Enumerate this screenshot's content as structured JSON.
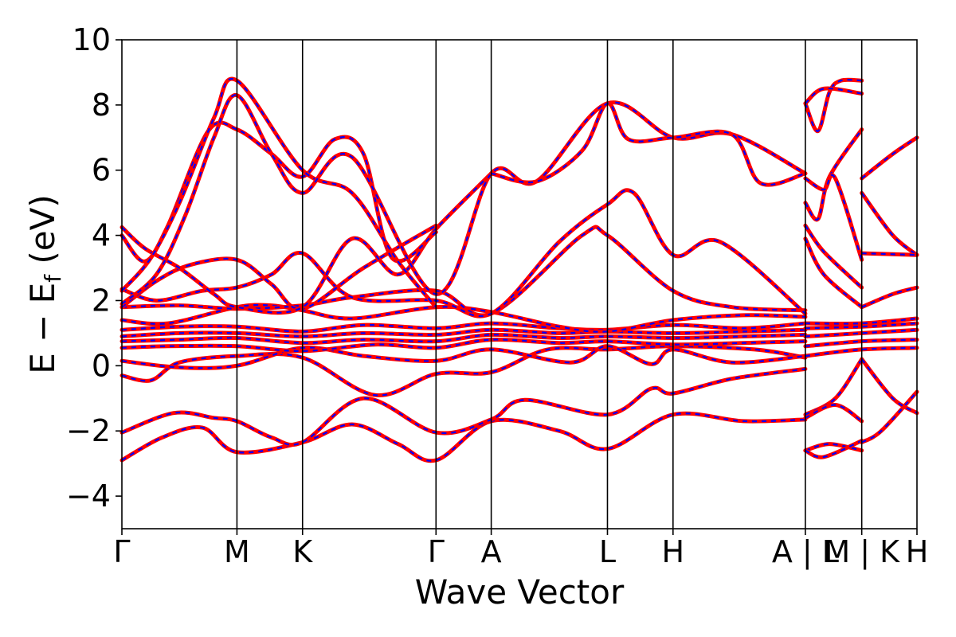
{
  "chart_data": {
    "type": "line",
    "xlabel": "Wave Vector",
    "ylabel": "E − E_f (eV)",
    "ylabel_parts": {
      "main": "E − E",
      "sub": "f",
      "unit": " (eV)"
    },
    "ylim": [
      -5,
      10
    ],
    "yticks": [
      -4,
      -2,
      0,
      2,
      4,
      6,
      8,
      10
    ],
    "ytick_labels": [
      "−4",
      "−2",
      "0",
      "2",
      "4",
      "6",
      "8",
      "10"
    ],
    "xlim": [
      0,
      6.91
    ],
    "kpoints": [
      {
        "label": "Γ",
        "x": 0.0
      },
      {
        "label": "M",
        "x": 1.0
      },
      {
        "label": "K",
        "x": 1.57
      },
      {
        "label": "Γ",
        "x": 2.73
      },
      {
        "label": "A",
        "x": 3.21
      },
      {
        "label": "L",
        "x": 4.22
      },
      {
        "label": "H",
        "x": 4.79
      },
      {
        "label": "A | L",
        "x": 5.94
      },
      {
        "label": "M | K",
        "x": 6.43
      },
      {
        "label": "H",
        "x": 6.91
      }
    ],
    "colors": {
      "primary": "#ff0000",
      "overlay": "#0000ff",
      "axis": "#000000"
    },
    "series": [
      {
        "x": [
          0,
          0.35,
          0.7,
          1.0,
          1.57,
          2.0,
          2.4,
          2.73,
          3.21,
          3.8,
          4.22,
          4.79,
          5.4,
          5.94
        ],
        "y": [
          -2.9,
          -2.2,
          -1.9,
          -2.65,
          -2.35,
          -1.8,
          -2.4,
          -2.9,
          -1.7,
          -2.0,
          -2.55,
          -1.5,
          -1.7,
          -1.65
        ]
      },
      {
        "x": [
          0,
          0.45,
          0.8,
          1.0,
          1.3,
          1.57,
          2.1,
          2.73,
          3.21,
          3.5,
          4.22,
          4.6,
          4.79,
          5.3,
          5.94
        ],
        "y": [
          -2.05,
          -1.45,
          -1.6,
          -1.7,
          -2.2,
          -2.35,
          -1.0,
          -2.05,
          -1.65,
          -1.05,
          -1.5,
          -0.7,
          -0.85,
          -0.4,
          -0.1
        ]
      },
      {
        "x": [
          0,
          0.25,
          0.5,
          1.0,
          1.57,
          2.2,
          2.73,
          3.21,
          3.7,
          4.22,
          4.79,
          5.5,
          5.94
        ],
        "y": [
          -0.3,
          -0.45,
          0.1,
          0.3,
          0.25,
          -0.9,
          -0.25,
          -0.2,
          0.5,
          0.5,
          0.6,
          0.5,
          0.25
        ]
      },
      {
        "x": [
          0,
          0.5,
          1.0,
          1.57,
          2.1,
          2.73,
          3.21,
          3.9,
          4.22,
          4.6,
          4.79,
          5.3,
          5.94
        ],
        "y": [
          0.15,
          -0.05,
          0.0,
          0.55,
          0.3,
          0.15,
          0.5,
          0.1,
          0.6,
          0.05,
          0.5,
          0.1,
          0.3
        ]
      },
      {
        "x": [
          0,
          0.4,
          1.0,
          1.57,
          2.2,
          2.73,
          3.21,
          3.8,
          4.22,
          4.79,
          5.4,
          5.94
        ],
        "y": [
          0.55,
          0.6,
          0.6,
          0.45,
          0.65,
          0.55,
          0.8,
          0.7,
          0.75,
          0.65,
          0.7,
          0.75
        ]
      },
      {
        "x": [
          0,
          0.5,
          1.0,
          1.57,
          2.1,
          2.73,
          3.21,
          3.8,
          4.22,
          4.79,
          5.4,
          5.94
        ],
        "y": [
          0.75,
          0.8,
          0.85,
          0.7,
          0.8,
          0.75,
          0.95,
          0.85,
          0.9,
          0.85,
          0.9,
          0.95
        ]
      },
      {
        "x": [
          0,
          0.5,
          1.0,
          1.57,
          2.1,
          2.73,
          3.21,
          3.8,
          4.22,
          4.79,
          5.4,
          5.94
        ],
        "y": [
          0.9,
          1.0,
          1.0,
          0.9,
          1.0,
          0.95,
          1.1,
          1.0,
          1.05,
          1.0,
          1.05,
          1.1
        ]
      },
      {
        "x": [
          0,
          0.5,
          1.0,
          1.57,
          2.1,
          2.73,
          3.21,
          3.8,
          4.22,
          4.79,
          5.4,
          5.94
        ],
        "y": [
          1.1,
          1.2,
          1.2,
          1.05,
          1.25,
          1.15,
          1.3,
          1.15,
          1.1,
          1.25,
          1.15,
          1.3
        ]
      },
      {
        "x": [
          0,
          0.4,
          1.0,
          1.3,
          1.57,
          2.0,
          2.73,
          3.21,
          3.8,
          4.22,
          4.79,
          5.4,
          5.94
        ],
        "y": [
          1.4,
          1.3,
          1.8,
          1.85,
          1.7,
          1.45,
          1.8,
          1.65,
          1.2,
          1.05,
          1.4,
          1.55,
          1.5
        ]
      },
      {
        "x": [
          0,
          0.5,
          1.0,
          1.57,
          2.0,
          2.73,
          3.21,
          4.0,
          4.22,
          4.79,
          5.3,
          5.94
        ],
        "y": [
          1.8,
          1.85,
          1.75,
          1.85,
          2.1,
          2.3,
          1.6,
          4.0,
          4.0,
          2.3,
          1.8,
          1.7
        ]
      },
      {
        "x": [
          0,
          0.3,
          0.7,
          1.0,
          1.3,
          1.57,
          2.0,
          2.73,
          3.21,
          3.8,
          4.22,
          4.45,
          4.79,
          5.2,
          5.94
        ],
        "y": [
          2.35,
          2.0,
          2.3,
          2.4,
          2.8,
          3.45,
          2.1,
          2.0,
          1.6,
          3.8,
          4.95,
          5.3,
          3.4,
          3.8,
          1.6
        ]
      },
      {
        "x": [
          0,
          0.3,
          0.6,
          1.0,
          1.3,
          1.57,
          2.1,
          2.73
        ],
        "y": [
          1.8,
          2.6,
          3.1,
          3.25,
          2.5,
          1.75,
          3.0,
          4.3
        ]
      },
      {
        "x": [
          0,
          0.2,
          0.5,
          0.8,
          1.0,
          1.57,
          2.0,
          2.4,
          2.73,
          3.21
        ],
        "y": [
          4.25,
          3.6,
          3.0,
          2.2,
          1.8,
          1.8,
          3.9,
          2.8,
          4.2,
          5.9
        ]
      },
      {
        "x": [
          0,
          0.2,
          0.4,
          0.75,
          1.0,
          1.3,
          1.57,
          1.85,
          2.1,
          2.35,
          2.73
        ],
        "y": [
          4.0,
          3.2,
          4.3,
          7.2,
          7.25,
          6.5,
          5.8,
          6.95,
          6.5,
          3.3,
          4.1
        ]
      },
      {
        "x": [
          0,
          0.25,
          0.5,
          0.8,
          1.0,
          1.57,
          2.0,
          2.4,
          2.73
        ],
        "y": [
          2.3,
          3.3,
          5.0,
          7.6,
          8.75,
          6.0,
          5.3,
          3.2,
          1.8
        ]
      },
      {
        "x": [
          0,
          0.3,
          0.55,
          0.8,
          1.0,
          1.3,
          1.57,
          2.0,
          2.73,
          3.21,
          3.6,
          4.22,
          4.79,
          5.3,
          5.94
        ],
        "y": [
          1.9,
          2.8,
          4.6,
          7.0,
          8.3,
          6.5,
          5.3,
          6.4,
          2.2,
          5.9,
          5.65,
          8.05,
          7.0,
          7.1,
          5.9
        ]
      },
      {
        "x": [
          3.21,
          3.6,
          4.0,
          4.22,
          4.4,
          4.79,
          5.3,
          5.55,
          5.94
        ],
        "y": [
          5.9,
          5.65,
          6.6,
          8.05,
          6.95,
          7.0,
          7.1,
          5.6,
          5.9
        ]
      },
      {
        "x": [
          5.94,
          6.05,
          6.15,
          6.25,
          6.43
        ],
        "y": [
          8.05,
          7.2,
          8.4,
          8.75,
          8.75
        ]
      },
      {
        "x": [
          5.94,
          6.1,
          6.43
        ],
        "y": [
          8.05,
          8.5,
          8.35
        ]
      },
      {
        "x": [
          5.94,
          6.05,
          6.15,
          6.43
        ],
        "y": [
          5.0,
          4.5,
          5.8,
          7.25
        ]
      },
      {
        "x": [
          5.94,
          6.1,
          6.2,
          6.43
        ],
        "y": [
          5.75,
          5.4,
          5.75,
          3.25
        ]
      },
      {
        "x": [
          5.94,
          6.1,
          6.43
        ],
        "y": [
          4.3,
          3.5,
          2.4
        ]
      },
      {
        "x": [
          5.94,
          6.1,
          6.43
        ],
        "y": [
          3.9,
          2.8,
          1.8
        ]
      },
      {
        "x": [
          5.94,
          6.2,
          6.43
        ],
        "y": [
          -1.5,
          -1.0,
          0.2
        ]
      },
      {
        "x": [
          5.94,
          6.2,
          6.43
        ],
        "y": [
          -1.6,
          -1.2,
          -1.7
        ]
      },
      {
        "x": [
          5.94,
          6.15,
          6.43
        ],
        "y": [
          -2.6,
          -2.4,
          -2.6
        ]
      },
      {
        "x": [
          5.94,
          6.1,
          6.43
        ],
        "y": [
          -2.6,
          -2.8,
          -2.3
        ]
      },
      {
        "x": [
          6.43,
          6.7,
          6.91
        ],
        "y": [
          5.75,
          6.5,
          7.0
        ]
      },
      {
        "x": [
          6.43,
          6.7,
          6.91
        ],
        "y": [
          5.3,
          4.0,
          3.4
        ]
      },
      {
        "x": [
          6.43,
          6.91
        ],
        "y": [
          3.45,
          3.4
        ]
      },
      {
        "x": [
          6.43,
          6.7,
          6.91
        ],
        "y": [
          1.8,
          2.2,
          2.4
        ]
      },
      {
        "x": [
          6.43,
          6.6,
          6.91
        ],
        "y": [
          -2.35,
          -2.0,
          -0.8
        ]
      },
      {
        "x": [
          6.43,
          6.7,
          6.91
        ],
        "y": [
          0.2,
          -1.0,
          -1.45
        ]
      },
      {
        "x": [
          5.94,
          6.43,
          6.91
        ],
        "y": [
          0.3,
          0.5,
          0.55
        ]
      },
      {
        "x": [
          5.94,
          6.43,
          6.91
        ],
        "y": [
          0.6,
          0.75,
          0.8
        ]
      },
      {
        "x": [
          5.94,
          6.43,
          6.91
        ],
        "y": [
          0.9,
          1.0,
          1.1
        ]
      },
      {
        "x": [
          5.94,
          6.43,
          6.91
        ],
        "y": [
          1.15,
          1.2,
          1.3
        ]
      },
      {
        "x": [
          5.94,
          6.43,
          6.91
        ],
        "y": [
          1.3,
          1.3,
          1.45
        ]
      }
    ]
  }
}
